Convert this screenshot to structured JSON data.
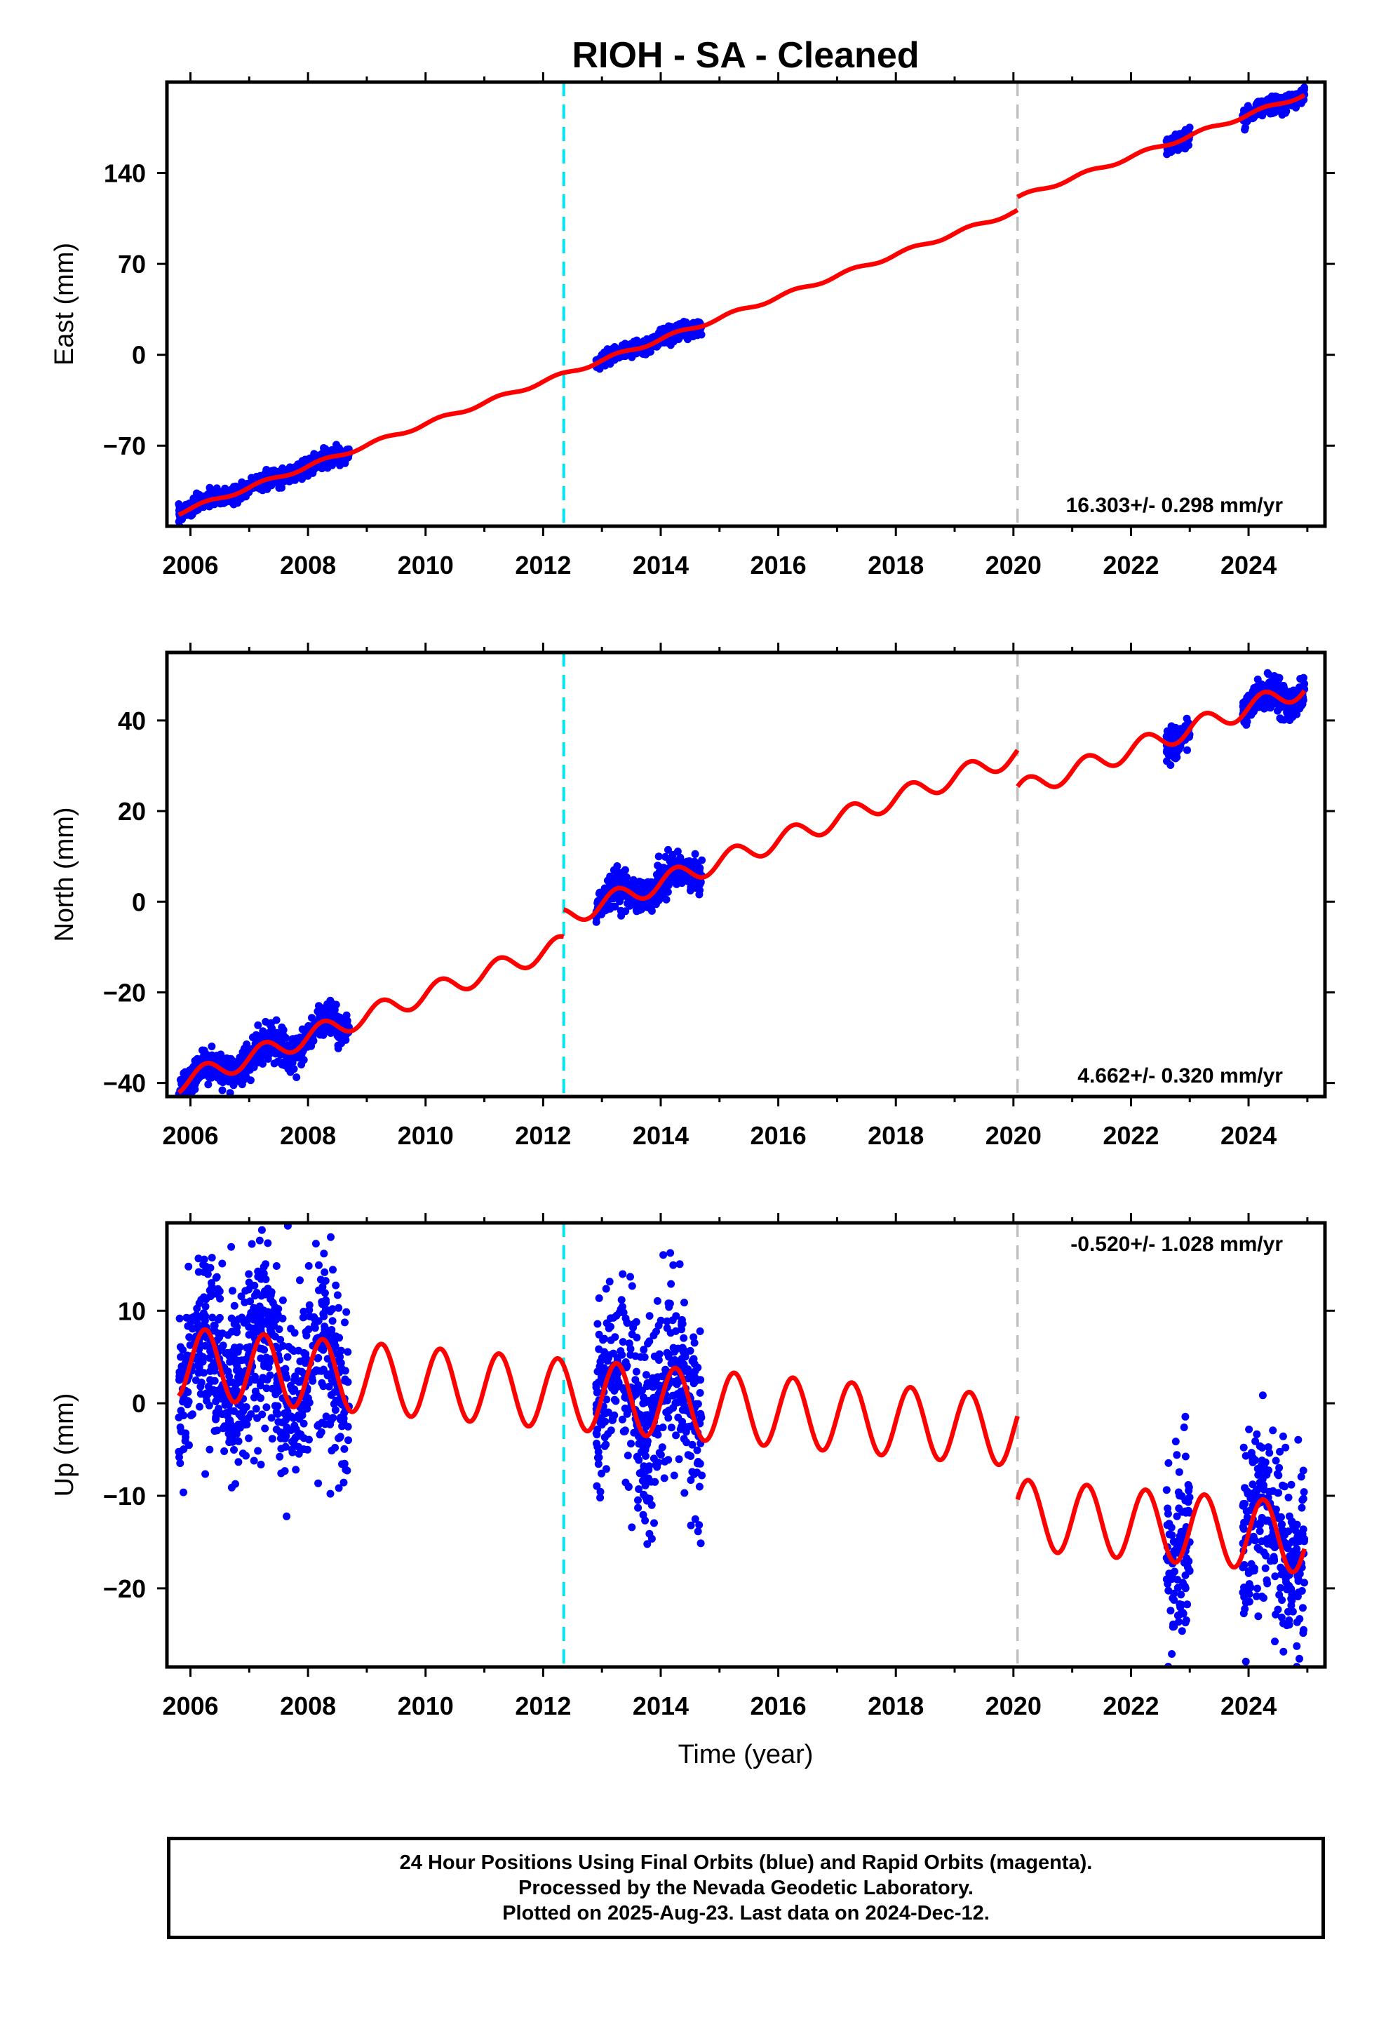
{
  "title": "RIOH  - SA - Cleaned",
  "xlabel": "Time (year)",
  "x_ticks": [
    "2006",
    "2008",
    "2010",
    "2012",
    "2014",
    "2016",
    "2018",
    "2020",
    "2022",
    "2024"
  ],
  "colors": {
    "data": "#0000ff",
    "model": "#ff0000",
    "break_cyan": "#00e5ee",
    "break_gray": "#c0c0c0",
    "frame": "#000000"
  },
  "footer": {
    "line1": "24 Hour Positions Using Final Orbits (blue) and Rapid Orbits (magenta).",
    "line2": "Processed by the Nevada Geodetic Laboratory.",
    "line3": "Plotted on 2025-Aug-23. Last data on 2024-Dec-12."
  },
  "chart_data": [
    {
      "type": "scatter",
      "name": "East",
      "ylabel": "East (mm)",
      "xlim": [
        2005.6,
        2025.3
      ],
      "ylim": [
        -132,
        210
      ],
      "y_ticks": [
        "-70",
        "0",
        "70",
        "140"
      ],
      "rate_label": "16.303+/- 0.298 mm/yr",
      "rate_position": "bottom-right",
      "breaks": [
        {
          "x": 2012.35,
          "color": "cyan"
        },
        {
          "x": 2020.07,
          "color": "gray"
        }
      ],
      "model": {
        "slope": 16.303,
        "ref_year": 2012.35,
        "ref_value": -15,
        "annual_amp": 1.5,
        "offsets": [
          {
            "x": 2020.07,
            "dy": 10
          }
        ]
      },
      "data_segments": [
        [
          2005.8,
          2008.7
        ],
        [
          2012.9,
          2014.7
        ],
        [
          2022.6,
          2023.0
        ],
        [
          2023.9,
          2024.95
        ]
      ],
      "scatter_noise": 3
    },
    {
      "type": "scatter",
      "name": "North",
      "ylabel": "North (mm)",
      "xlim": [
        2005.6,
        2025.3
      ],
      "ylim": [
        -43,
        55
      ],
      "y_ticks": [
        "-40",
        "-20",
        "0",
        "20",
        "40"
      ],
      "rate_label": "4.662+/- 0.320 mm/yr",
      "rate_position": "bottom-right",
      "breaks": [
        {
          "x": 2012.35,
          "color": "cyan"
        },
        {
          "x": 2020.07,
          "color": "gray"
        }
      ],
      "model": {
        "slope": 4.662,
        "ref_year": 2012.35,
        "ref_value": -9.5,
        "annual_amp": 2.2,
        "offsets": [
          {
            "x": 2012.35,
            "dy": 6
          },
          {
            "x": 2020.07,
            "dy": -8
          }
        ]
      },
      "data_segments": [
        [
          2005.8,
          2008.7
        ],
        [
          2012.9,
          2014.7
        ],
        [
          2022.6,
          2023.0
        ],
        [
          2023.9,
          2024.95
        ]
      ],
      "scatter_noise": 1.8
    },
    {
      "type": "scatter",
      "name": "Up",
      "ylabel": "Up (mm)",
      "xlim": [
        2005.6,
        2025.3
      ],
      "ylim": [
        -28.5,
        19.5
      ],
      "y_ticks": [
        "-20",
        "-10",
        "0",
        "10"
      ],
      "rate_label": "-0.520+/- 1.028 mm/yr",
      "rate_position": "top-right",
      "breaks": [
        {
          "x": 2012.35,
          "color": "cyan"
        },
        {
          "x": 2020.07,
          "color": "gray"
        }
      ],
      "model": {
        "slope": -0.52,
        "ref_year": 2012.35,
        "ref_value": 1.0,
        "annual_amp": 3.8,
        "offsets": [
          {
            "x": 2020.07,
            "dy": -9
          }
        ]
      },
      "data_segments": [
        [
          2005.8,
          2008.7
        ],
        [
          2012.9,
          2014.7
        ],
        [
          2022.6,
          2023.0
        ],
        [
          2023.9,
          2024.95
        ]
      ],
      "scatter_noise": 5
    }
  ]
}
